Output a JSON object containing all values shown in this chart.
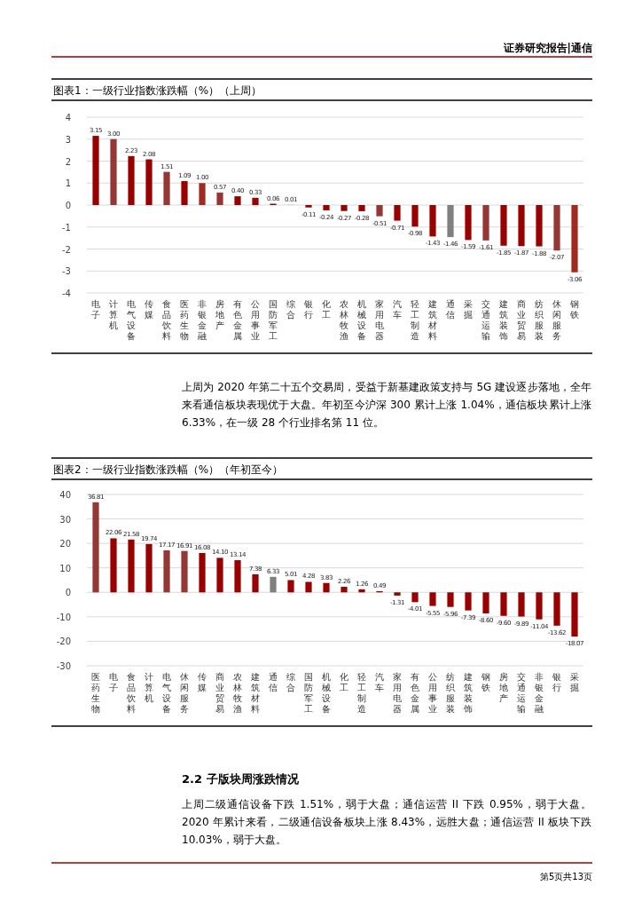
{
  "chart_data": [
    {
      "type": "bar",
      "title": "图表1：一级行业指数涨跌幅（%）（上周）",
      "annotations": [
        "证券研究报告|通信",
        "上周为 2020 年第二十五个交易周，受益于新基建政策支持与 5G 建设逐步落地，全年来看通信板块表现优于大盘。年初至今沪深 300 累计上涨 1.04%，通信板块累计上涨 6.33%，在一级 28 个行业排名第 11 位。"
      ],
      "categories": [
        "电子",
        "计算机",
        "电气设备",
        "传媒",
        "食品饮料",
        "医药生物",
        "非银金融",
        "房地产",
        "有色金属",
        "公用事业",
        "国防军工",
        "综合",
        "银行",
        "化工",
        "农林牧渔",
        "机械设备",
        "家用电器",
        "汽车",
        "轻工制造",
        "建筑材料",
        "通信",
        "采掘",
        "交通运输",
        "建筑装饰",
        "商业贸易",
        "纺织服装",
        "休闲服务",
        "钢铁"
      ],
      "values": [
        3.15,
        3.0,
        2.23,
        2.08,
        1.51,
        1.09,
        1.0,
        0.57,
        0.4,
        0.33,
        0.06,
        0.01,
        -0.11,
        -0.24,
        -0.27,
        -0.28,
        -0.51,
        -0.71,
        -0.98,
        -1.43,
        -1.46,
        -1.59,
        -1.61,
        -1.85,
        -1.87,
        -1.88,
        -2.07,
        -3.06
      ],
      "value_labels": [
        "3.15",
        "3.00",
        "2.23",
        "2.08",
        "1.51",
        "1.09",
        "1.00",
        "0.57",
        "0.40",
        "0.33",
        "0.06",
        "0.01",
        "-0.11",
        "-0.24",
        "-0.27",
        "-0.28",
        "-0.51",
        "-0.71",
        "-0.98",
        "-1.43",
        "-1.46",
        "-1.59",
        "-1.61",
        "-1.85",
        "-1.87",
        "-1.88",
        "-2.07",
        "-3.06"
      ],
      "colors": [
        "#990000",
        "#953735",
        "#990000",
        "#990000",
        "#953735",
        "#990000",
        "#9e2a22",
        "#953735",
        "#990000",
        "#990000",
        "#990000",
        "#e6a0a0",
        "#990000",
        "#990000",
        "#990000",
        "#990000",
        "#953735",
        "#990000",
        "#990000",
        "#990000",
        "#808080",
        "#990000",
        "#953735",
        "#990000",
        "#990000",
        "#990000",
        "#953735",
        "#a02a20"
      ],
      "ylim": [
        -4,
        4
      ],
      "yticks": [
        -4,
        -3,
        -2,
        -1,
        0,
        1,
        2,
        3,
        4
      ],
      "grid": "y"
    },
    {
      "type": "bar",
      "title": "图表2：一级行业指数涨跌幅（%）（年初至今）",
      "annotations": [
        "2.2 子版块周涨跌情况",
        "上周二级通信设备下跌 1.51%，弱于大盘；通信运营 II 下跌 0.95%，弱于大盘。2020 年累计来看，二级通信设备板块上涨 8.43%，远胜大盘；通信运营 II 板块下跌 10.03%，弱于大盘。",
        "第5页共13页"
      ],
      "categories": [
        "医药生物",
        "电子",
        "食品饮料",
        "计算机",
        "电气设备",
        "休闲服务",
        "传媒",
        "商业贸易",
        "农林牧渔",
        "建筑材料",
        "通信",
        "综合",
        "国防军工",
        "机械设备",
        "化工",
        "轻工制造",
        "汽车",
        "家用电器",
        "有色金属",
        "公用事业",
        "纺织服装",
        "建筑装饰",
        "钢铁",
        "房地产",
        "交通运输",
        "非银金融",
        "银行",
        "采掘"
      ],
      "values": [
        36.81,
        22.06,
        21.58,
        19.74,
        17.17,
        16.91,
        16.08,
        14.1,
        13.14,
        7.38,
        6.33,
        5.01,
        4.28,
        3.83,
        2.26,
        1.26,
        0.49,
        -1.31,
        -4.01,
        -5.55,
        -5.96,
        -7.39,
        -8.6,
        -9.6,
        -9.89,
        -11.04,
        -13.62,
        -18.07
      ],
      "value_labels": [
        "36.81",
        "22.06",
        "21.58",
        "19.74",
        "17.17",
        "16.91",
        "16.08",
        "14.10",
        "13.14",
        "7.38",
        "6.33",
        "5.01",
        "4.28",
        "3.83",
        "2.26",
        "1.26",
        "0.49",
        "-1.31",
        "-4.01",
        "-5.55",
        "-5.96",
        "-7.39",
        "-8.60",
        "-9.60",
        "-9.89",
        "-11.04",
        "-13.62",
        "-18.07"
      ],
      "colors": [
        "#953735",
        "#990000",
        "#990000",
        "#990000",
        "#953735",
        "#953735",
        "#990000",
        "#990000",
        "#990000",
        "#990000",
        "#808080",
        "#990000",
        "#990000",
        "#990000",
        "#990000",
        "#990000",
        "#990000",
        "#990000",
        "#990000",
        "#990000",
        "#990000",
        "#990000",
        "#990000",
        "#990000",
        "#990000",
        "#990000",
        "#990000",
        "#990000"
      ],
      "ylim": [
        -30,
        40
      ],
      "yticks": [
        -30,
        -20,
        -10,
        0,
        10,
        20,
        30,
        40
      ],
      "grid": "y"
    }
  ]
}
